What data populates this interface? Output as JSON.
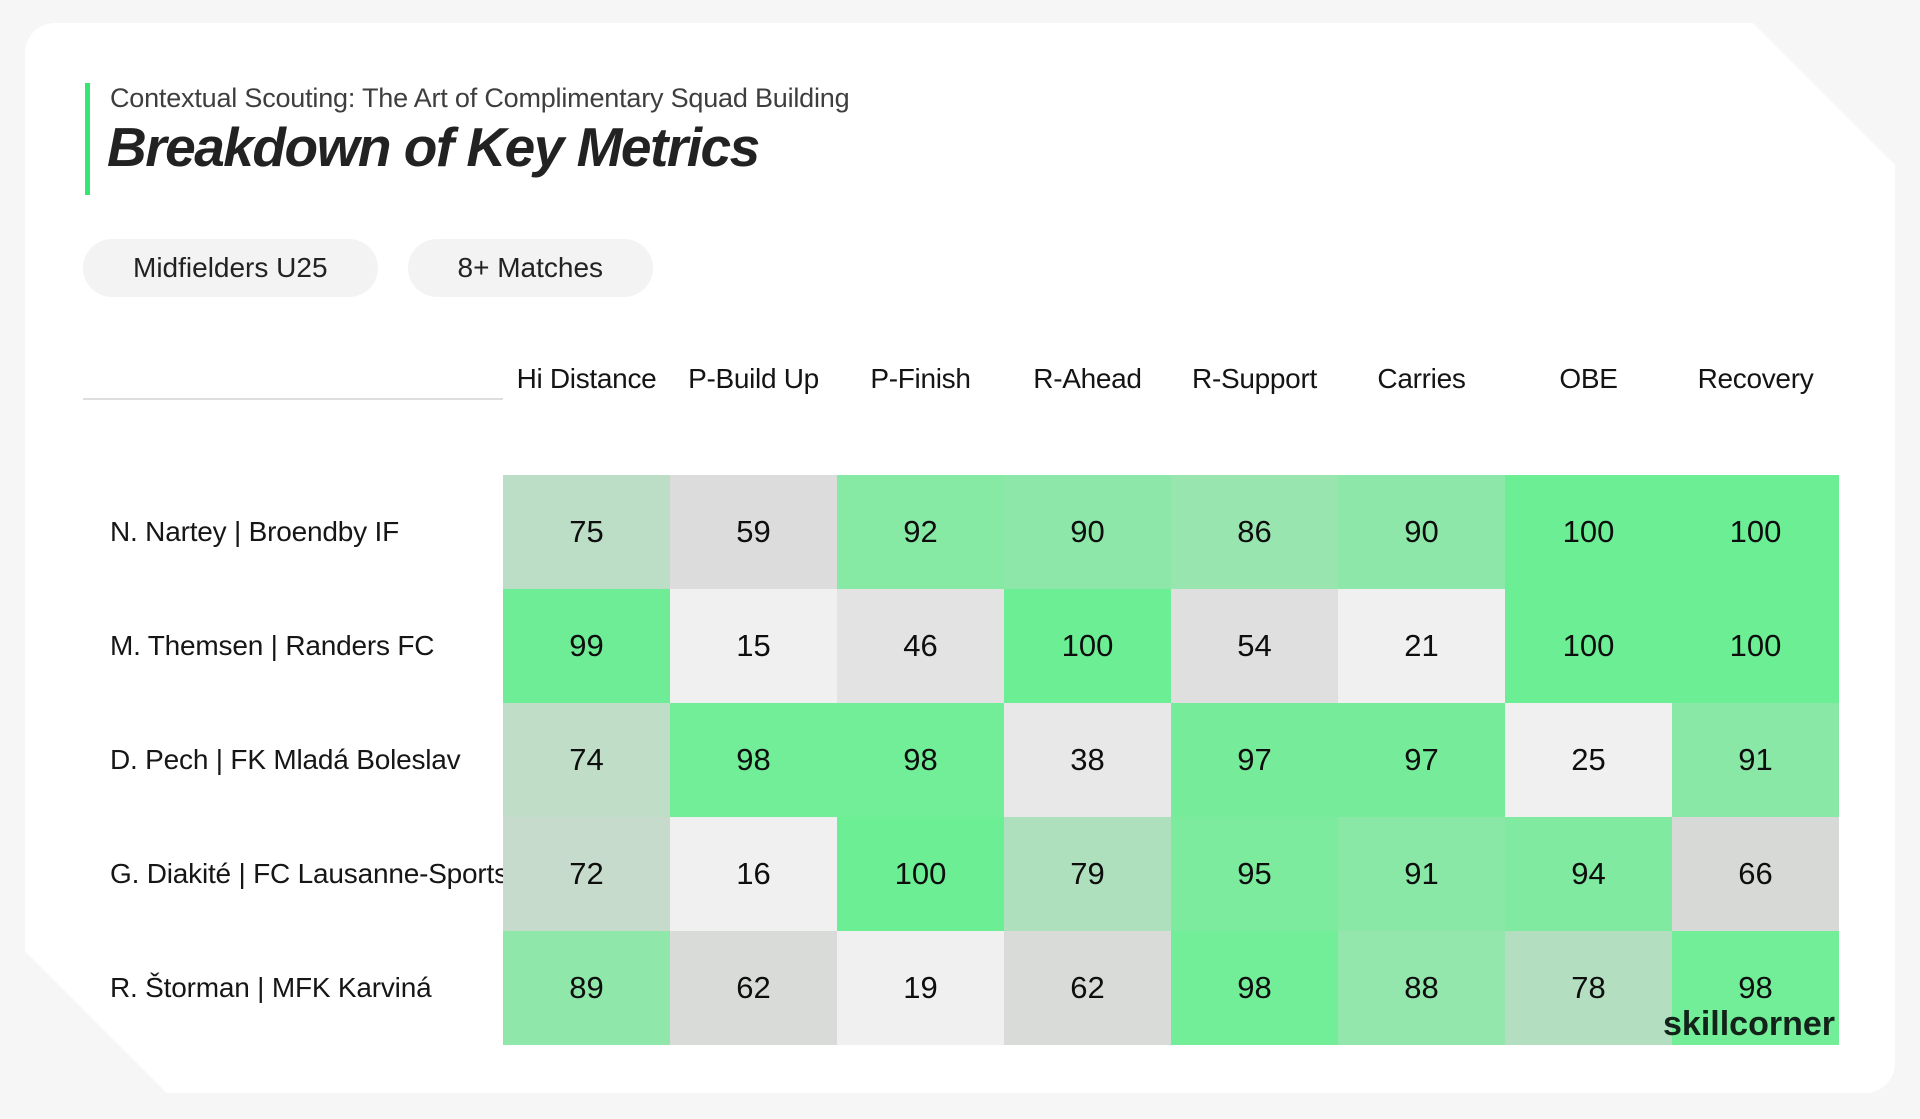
{
  "header": {
    "subtitle": "Contextual Scouting: The Art of Complimentary Squad Building",
    "title": "Breakdown of Key Metrics"
  },
  "filters": [
    {
      "label": "Midfielders U25"
    },
    {
      "label": "8+ Matches"
    }
  ],
  "brand": {
    "logo_text": "skillcorner"
  },
  "colors": {
    "page_bg": "#f6f6f7",
    "card_bg": "#ffffff",
    "accent_green": "#35e673",
    "badge_bg": "#f3f3f4",
    "heat_high": "#6cee94",
    "heat_mid_gray": "#d6d8d6",
    "heat_low": "#f0f0f0"
  },
  "chart_data": {
    "type": "heatmap",
    "title": "Breakdown of Key Metrics",
    "subtitle": "Contextual Scouting: The Art of Complimentary Squad Building",
    "columns": [
      "Hi Distance",
      "P-Build Up",
      "P-Finish",
      "R-Ahead",
      "R-Support",
      "Carries",
      "OBE",
      "Recovery"
    ],
    "rows": [
      "N. Nartey | Broendby IF",
      "M. Themsen | Randers FC",
      "D. Pech | FK Mladá Boleslav",
      "G. Diakité | FC Lausanne-Sports",
      "R. Štorman | MFK Karviná"
    ],
    "values": [
      [
        75,
        59,
        92,
        90,
        86,
        90,
        100,
        100
      ],
      [
        99,
        15,
        46,
        100,
        54,
        21,
        100,
        100
      ],
      [
        74,
        98,
        98,
        38,
        97,
        97,
        25,
        91
      ],
      [
        72,
        16,
        100,
        79,
        95,
        91,
        94,
        66
      ],
      [
        89,
        62,
        19,
        62,
        98,
        88,
        78,
        98
      ]
    ],
    "value_range": [
      0,
      100
    ],
    "legend": "none",
    "colormap": "gray-to-green (low gray, high green)"
  }
}
